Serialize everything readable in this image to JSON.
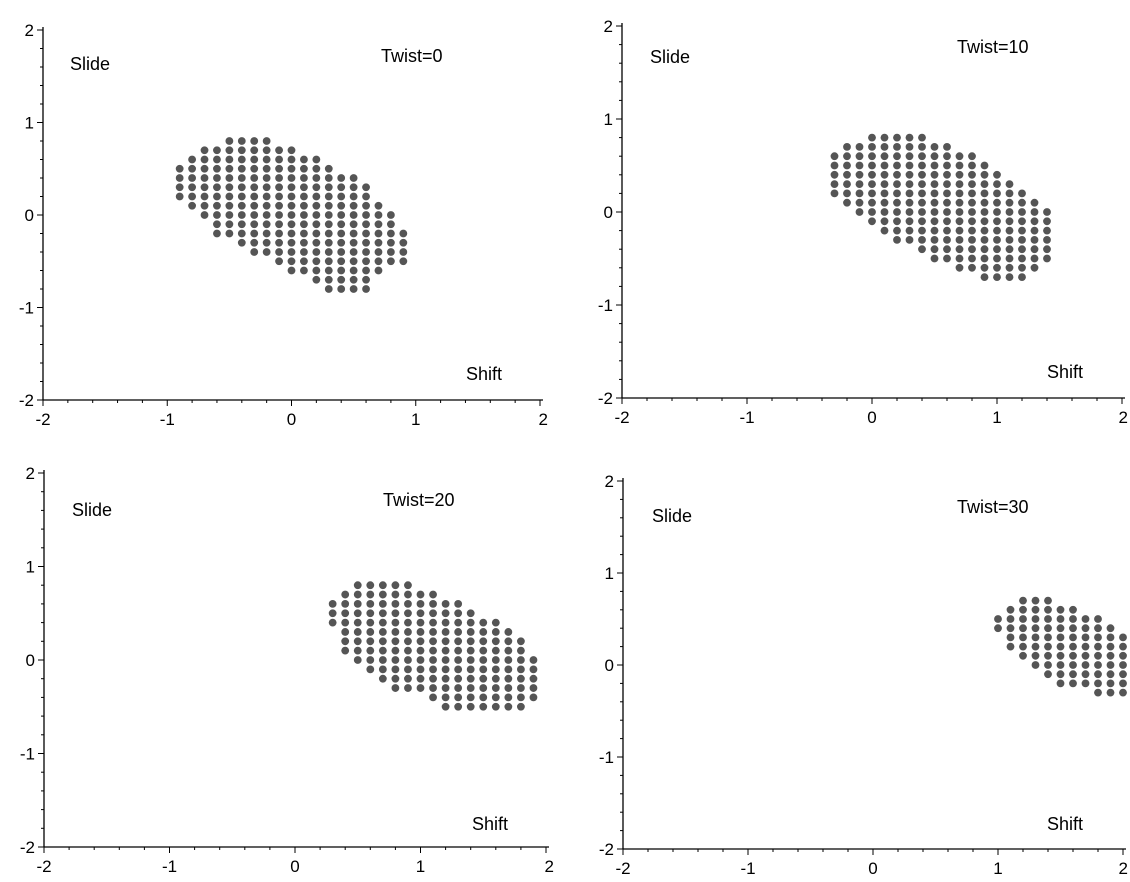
{
  "chart_data": [
    {
      "type": "scatter",
      "title": "Twist=0",
      "xlabel": "Shift",
      "ylabel": "Slide",
      "xlim": [
        -2,
        2
      ],
      "ylim": [
        -2,
        2
      ],
      "xticks": [
        "-2",
        "-1",
        "0",
        "1",
        "2"
      ],
      "yticks": [
        "-2",
        "-1",
        "0",
        "1",
        "2"
      ],
      "grid": false,
      "marker_color": "#555555",
      "columns": [
        {
          "x": -0.9,
          "y_min": 0.2,
          "y_max": 0.5
        },
        {
          "x": -0.8,
          "y_min": 0.1,
          "y_max": 0.6
        },
        {
          "x": -0.7,
          "y_min": 0.0,
          "y_max": 0.7
        },
        {
          "x": -0.6,
          "y_min": -0.2,
          "y_max": 0.7
        },
        {
          "x": -0.5,
          "y_min": -0.2,
          "y_max": 0.8
        },
        {
          "x": -0.4,
          "y_min": -0.3,
          "y_max": 0.8
        },
        {
          "x": -0.3,
          "y_min": -0.4,
          "y_max": 0.8
        },
        {
          "x": -0.2,
          "y_min": -0.4,
          "y_max": 0.8
        },
        {
          "x": -0.1,
          "y_min": -0.5,
          "y_max": 0.7
        },
        {
          "x": 0.0,
          "y_min": -0.6,
          "y_max": 0.7
        },
        {
          "x": 0.1,
          "y_min": -0.6,
          "y_max": 0.6
        },
        {
          "x": 0.2,
          "y_min": -0.7,
          "y_max": 0.6
        },
        {
          "x": 0.3,
          "y_min": -0.8,
          "y_max": 0.5
        },
        {
          "x": 0.4,
          "y_min": -0.8,
          "y_max": 0.4
        },
        {
          "x": 0.5,
          "y_min": -0.8,
          "y_max": 0.4
        },
        {
          "x": 0.6,
          "y_min": -0.8,
          "y_max": 0.3
        },
        {
          "x": 0.7,
          "y_min": -0.6,
          "y_max": 0.1
        },
        {
          "x": 0.8,
          "y_min": -0.5,
          "y_max": 0.0
        },
        {
          "x": 0.9,
          "y_min": -0.5,
          "y_max": -0.2
        }
      ]
    },
    {
      "type": "scatter",
      "title": "Twist=10",
      "xlabel": "Shift",
      "ylabel": "Slide",
      "xlim": [
        -2,
        2
      ],
      "ylim": [
        -2,
        2
      ],
      "xticks": [
        "-2",
        "-1",
        "0",
        "1",
        "2"
      ],
      "yticks": [
        "-2",
        "-1",
        "0",
        "1",
        "2"
      ],
      "grid": false,
      "marker_color": "#555555",
      "columns": [
        {
          "x": -0.3,
          "y_min": 0.2,
          "y_max": 0.6
        },
        {
          "x": -0.2,
          "y_min": 0.1,
          "y_max": 0.7
        },
        {
          "x": -0.1,
          "y_min": 0.0,
          "y_max": 0.7
        },
        {
          "x": 0.0,
          "y_min": -0.1,
          "y_max": 0.8
        },
        {
          "x": 0.1,
          "y_min": -0.2,
          "y_max": 0.8
        },
        {
          "x": 0.2,
          "y_min": -0.3,
          "y_max": 0.8
        },
        {
          "x": 0.3,
          "y_min": -0.3,
          "y_max": 0.8
        },
        {
          "x": 0.4,
          "y_min": -0.4,
          "y_max": 0.8
        },
        {
          "x": 0.5,
          "y_min": -0.5,
          "y_max": 0.7
        },
        {
          "x": 0.6,
          "y_min": -0.5,
          "y_max": 0.7
        },
        {
          "x": 0.7,
          "y_min": -0.6,
          "y_max": 0.6
        },
        {
          "x": 0.8,
          "y_min": -0.6,
          "y_max": 0.6
        },
        {
          "x": 0.9,
          "y_min": -0.7,
          "y_max": 0.5
        },
        {
          "x": 1.0,
          "y_min": -0.7,
          "y_max": 0.4
        },
        {
          "x": 1.1,
          "y_min": -0.7,
          "y_max": 0.3
        },
        {
          "x": 1.2,
          "y_min": -0.7,
          "y_max": 0.2
        },
        {
          "x": 1.3,
          "y_min": -0.6,
          "y_max": 0.1
        },
        {
          "x": 1.4,
          "y_min": -0.5,
          "y_max": 0.0
        }
      ]
    },
    {
      "type": "scatter",
      "title": "Twist=20",
      "xlabel": "Shift",
      "ylabel": "Slide",
      "xlim": [
        -2,
        2
      ],
      "ylim": [
        -2,
        2
      ],
      "xticks": [
        "-2",
        "-1",
        "0",
        "1",
        "2"
      ],
      "yticks": [
        "-2",
        "-1",
        "0",
        "1",
        "2"
      ],
      "grid": false,
      "marker_color": "#555555",
      "columns": [
        {
          "x": 0.3,
          "y_min": 0.4,
          "y_max": 0.6
        },
        {
          "x": 0.4,
          "y_min": 0.1,
          "y_max": 0.7
        },
        {
          "x": 0.5,
          "y_min": 0.0,
          "y_max": 0.8
        },
        {
          "x": 0.6,
          "y_min": -0.1,
          "y_max": 0.8
        },
        {
          "x": 0.7,
          "y_min": -0.2,
          "y_max": 0.8
        },
        {
          "x": 0.8,
          "y_min": -0.3,
          "y_max": 0.8
        },
        {
          "x": 0.9,
          "y_min": -0.3,
          "y_max": 0.8
        },
        {
          "x": 1.0,
          "y_min": -0.3,
          "y_max": 0.7
        },
        {
          "x": 1.1,
          "y_min": -0.4,
          "y_max": 0.7
        },
        {
          "x": 1.2,
          "y_min": -0.5,
          "y_max": 0.6
        },
        {
          "x": 1.3,
          "y_min": -0.5,
          "y_max": 0.6
        },
        {
          "x": 1.4,
          "y_min": -0.5,
          "y_max": 0.5
        },
        {
          "x": 1.5,
          "y_min": -0.5,
          "y_max": 0.4
        },
        {
          "x": 1.6,
          "y_min": -0.5,
          "y_max": 0.4
        },
        {
          "x": 1.7,
          "y_min": -0.5,
          "y_max": 0.3
        },
        {
          "x": 1.8,
          "y_min": -0.5,
          "y_max": 0.2
        },
        {
          "x": 1.9,
          "y_min": -0.4,
          "y_max": 0.0
        }
      ]
    },
    {
      "type": "scatter",
      "title": "Twist=30",
      "xlabel": "Shift",
      "ylabel": "Slide",
      "xlim": [
        -2,
        2
      ],
      "ylim": [
        -2,
        2
      ],
      "xticks": [
        "-2",
        "-1",
        "0",
        "1",
        "2"
      ],
      "yticks": [
        "-2",
        "-1",
        "0",
        "1",
        "2"
      ],
      "grid": false,
      "marker_color": "#555555",
      "columns": [
        {
          "x": 1.0,
          "y_min": 0.4,
          "y_max": 0.5
        },
        {
          "x": 1.1,
          "y_min": 0.2,
          "y_max": 0.6
        },
        {
          "x": 1.2,
          "y_min": 0.1,
          "y_max": 0.7
        },
        {
          "x": 1.3,
          "y_min": 0.0,
          "y_max": 0.7
        },
        {
          "x": 1.4,
          "y_min": -0.1,
          "y_max": 0.7
        },
        {
          "x": 1.5,
          "y_min": -0.2,
          "y_max": 0.6
        },
        {
          "x": 1.6,
          "y_min": -0.2,
          "y_max": 0.6
        },
        {
          "x": 1.7,
          "y_min": -0.2,
          "y_max": 0.5
        },
        {
          "x": 1.8,
          "y_min": -0.3,
          "y_max": 0.5
        },
        {
          "x": 1.9,
          "y_min": -0.3,
          "y_max": 0.4
        },
        {
          "x": 2.0,
          "y_min": -0.3,
          "y_max": 0.3
        }
      ]
    }
  ]
}
